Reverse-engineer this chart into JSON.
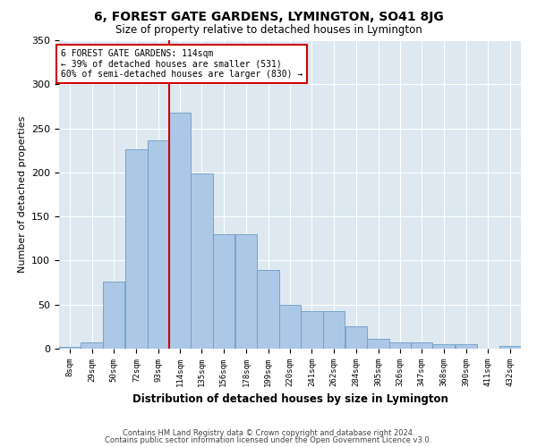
{
  "title": "6, FOREST GATE GARDENS, LYMINGTON, SO41 8JG",
  "subtitle": "Size of property relative to detached houses in Lymington",
  "xlabel": "Distribution of detached houses by size in Lymington",
  "ylabel": "Number of detached properties",
  "bar_color": "#adc8e6",
  "bar_edge_color": "#6a9cc2",
  "bg_color": "#dde8f0",
  "grid_color": "#ffffff",
  "vline_x": 114,
  "vline_color": "#cc0000",
  "annotation_text": "6 FOREST GATE GARDENS: 114sqm\n← 39% of detached houses are smaller (531)\n60% of semi-detached houses are larger (830) →",
  "annotation_box_color": "#cc0000",
  "bins": [
    8,
    29,
    50,
    72,
    93,
    114,
    135,
    156,
    178,
    199,
    220,
    241,
    262,
    284,
    305,
    326,
    347,
    368,
    390,
    411,
    432
  ],
  "bar_heights": [
    2,
    7,
    76,
    226,
    236,
    268,
    199,
    130,
    130,
    89,
    50,
    43,
    43,
    25,
    11,
    7,
    7,
    5,
    5,
    0,
    3
  ],
  "bin_width": 21,
  "xlim_left": 8,
  "xlim_right": 453,
  "ylim_top": 350,
  "yticks": [
    0,
    50,
    100,
    150,
    200,
    250,
    300,
    350
  ],
  "footer_line1": "Contains HM Land Registry data © Crown copyright and database right 2024.",
  "footer_line2": "Contains public sector information licensed under the Open Government Licence v3.0."
}
